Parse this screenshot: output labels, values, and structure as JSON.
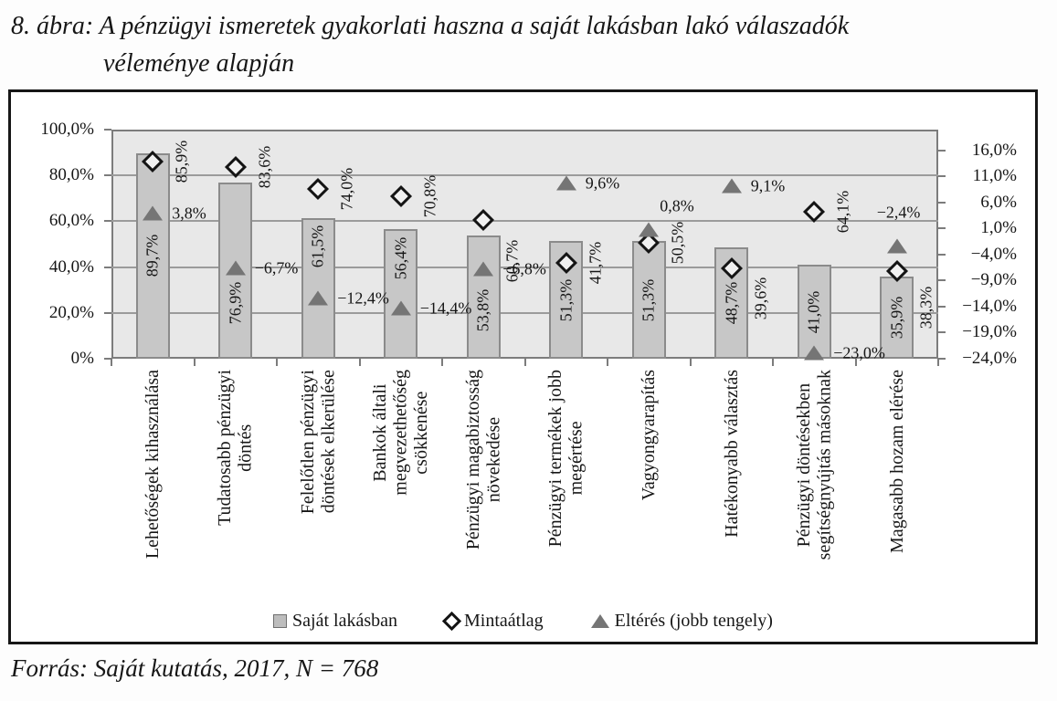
{
  "figure": {
    "title_line1": "8. ábra: A pénzügyi ismeretek gyakorlati haszna a saját lakásban lakó válaszadók",
    "title_line2": "véleménye alapján",
    "source": "Forrás: Saját kutatás, 2017, N = 768"
  },
  "chart_data": {
    "type": "bar",
    "categories": [
      "Lehetőségek kihasználása",
      "Tudatosabb pénzügyi\ndöntés",
      "Felelőtlen pénzügyi\ndöntések elkerülése",
      "Bankok általi\nmegvezethetőség\ncsökkenése",
      "Pénzügyi magabiztosság\nnövekedése",
      "Pénzügyi termékek jobb\nmegértése",
      "Vagyongyarapítás",
      "Hatékonyabb választás",
      "Pénzügyi döntésekben\nsegítségnyújtás másoknak",
      "Magasabb hozam elérése"
    ],
    "series": [
      {
        "name": "Saját lakásban",
        "marker": "bar",
        "axis": "left",
        "values": [
          89.7,
          76.9,
          61.5,
          56.4,
          53.8,
          51.3,
          51.3,
          48.7,
          41.0,
          35.9
        ],
        "labels": [
          "89,7%",
          "76,9%",
          "61,5%",
          "56,4%",
          "53,8%",
          "51,3%",
          "51,3%",
          "48,7%",
          "41,0%",
          "35,9%"
        ]
      },
      {
        "name": "Mintaátlag",
        "marker": "diamond",
        "axis": "left",
        "values": [
          85.9,
          83.6,
          74.0,
          70.8,
          60.7,
          41.7,
          50.5,
          39.6,
          64.1,
          38.3
        ],
        "labels": [
          "85,9%",
          "83,6%",
          "74,0%",
          "70,8%",
          "60,7%",
          "41,7%",
          "50,5%",
          "39,6%",
          "64,1%",
          "38,3%"
        ]
      },
      {
        "name": "Eltérés (jobb tengely)",
        "marker": "triangle",
        "axis": "right",
        "values": [
          3.8,
          -6.7,
          -12.4,
          -14.4,
          -6.8,
          9.6,
          0.8,
          9.1,
          -23.0,
          -2.4
        ],
        "labels": [
          "3,8%",
          "−6,7%",
          "−12,4%",
          "−14,4%",
          "−6,8%",
          "9,6%",
          "0,8%",
          "9,1%",
          "−23,0%",
          "−2,4%"
        ]
      }
    ],
    "left_axis": {
      "min": 0,
      "max": 100,
      "tick_labels": [
        "100,0%",
        "80,0%",
        "60,0%",
        "40,0%",
        "20,0%",
        "0%"
      ],
      "tick_values": [
        100,
        80,
        60,
        40,
        20,
        0
      ]
    },
    "right_axis": {
      "min": -24,
      "max": 20,
      "tick_labels": [
        "16,0%",
        "11,0%",
        "6,0%",
        "1,0%",
        "−4,0%",
        "−9,0%",
        "−14,0%",
        "−19,0%",
        "−24,0%"
      ],
      "tick_values": [
        16,
        11,
        6,
        1,
        -4,
        -9,
        -14,
        -19,
        -24
      ]
    },
    "legend": [
      {
        "marker": "square",
        "label": "Saját lakásban"
      },
      {
        "marker": "diamond",
        "label": "Mintaátlag"
      },
      {
        "marker": "triangle",
        "label": "Eltérés (jobb tengely)"
      }
    ],
    "grid": true,
    "legend_position": "bottom",
    "colors": {
      "bar_fill": "#c7c7c7",
      "bar_border": "#8b8b8b",
      "plot_bg": "#e8e8e8",
      "gridline": "#9b9b9b",
      "axis": "#7c7c7c",
      "triangle": "#757575",
      "diamond": "#141414",
      "square_legend": "#bdbdbd"
    }
  }
}
